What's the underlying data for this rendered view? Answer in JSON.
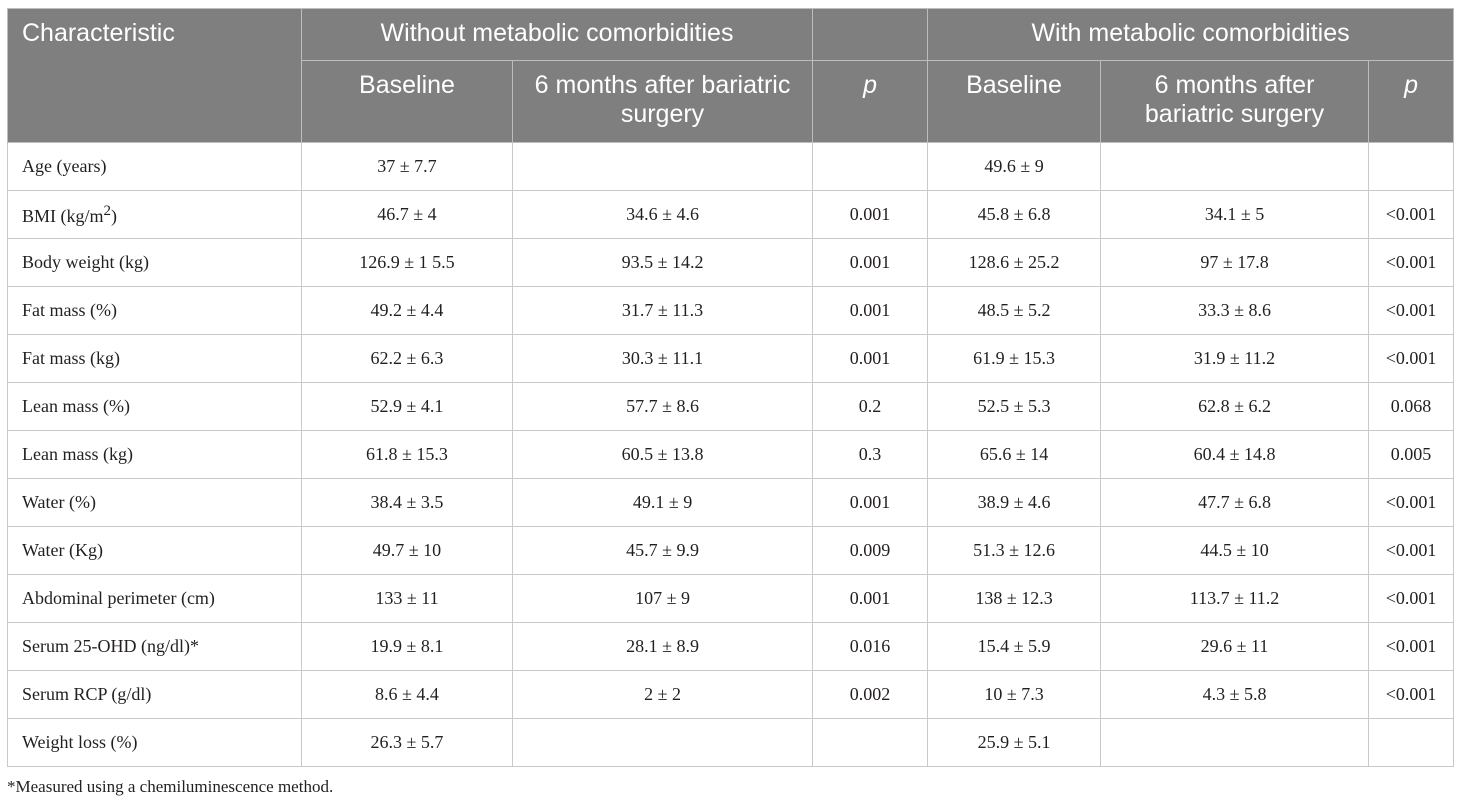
{
  "header": {
    "characteristic": "Characteristic",
    "group_without": "Without metabolic comorbidities",
    "group_with": "With metabolic comorbidities",
    "baseline": "Baseline",
    "after": "6 months after bariatric surgery",
    "p": "p"
  },
  "rows": [
    {
      "label": "Age (years)",
      "wo_base": "37 ± 7.7",
      "wo_after": "",
      "wo_p": "",
      "w_base": "49.6 ± 9",
      "w_after": "",
      "w_p": ""
    },
    {
      "label_pre": "BMI (kg/m",
      "label_sup": "2",
      "label_post": ")",
      "wo_base": "46.7 ± 4",
      "wo_after": "34.6 ± 4.6",
      "wo_p": "0.001",
      "w_base": "45.8 ± 6.8",
      "w_after": "34.1 ± 5",
      "w_p": "<0.001"
    },
    {
      "label": "Body weight (kg)",
      "wo_base": "126.9 ± 1 5.5",
      "wo_after": "93.5 ± 14.2",
      "wo_p": "0.001",
      "w_base": "128.6 ± 25.2",
      "w_after": "97 ± 17.8",
      "w_p": "<0.001"
    },
    {
      "label": "Fat mass (%)",
      "wo_base": "49.2 ± 4.4",
      "wo_after": "31.7 ± 11.3",
      "wo_p": "0.001",
      "w_base": "48.5 ± 5.2",
      "w_after": "33.3 ± 8.6",
      "w_p": "<0.001"
    },
    {
      "label": "Fat mass (kg)",
      "wo_base": "62.2 ± 6.3",
      "wo_after": "30.3 ± 11.1",
      "wo_p": "0.001",
      "w_base": "61.9 ± 15.3",
      "w_after": "31.9 ± 11.2",
      "w_p": "<0.001"
    },
    {
      "label": "Lean mass (%)",
      "wo_base": "52.9 ± 4.1",
      "wo_after": "57.7 ± 8.6",
      "wo_p": "0.2",
      "w_base": "52.5 ± 5.3",
      "w_after": "62.8 ± 6.2",
      "w_p": "0.068"
    },
    {
      "label": "Lean mass (kg)",
      "wo_base": "61.8 ± 15.3",
      "wo_after": "60.5 ± 13.8",
      "wo_p": "0.3",
      "w_base": "65.6 ± 14",
      "w_after": "60.4 ± 14.8",
      "w_p": "0.005"
    },
    {
      "label": "Water (%)",
      "wo_base": "38.4 ± 3.5",
      "wo_after": "49.1 ± 9",
      "wo_p": "0.001",
      "w_base": "38.9 ± 4.6",
      "w_after": "47.7 ± 6.8",
      "w_p": "<0.001"
    },
    {
      "label": "Water (Kg)",
      "wo_base": "49.7 ± 10",
      "wo_after": "45.7 ± 9.9",
      "wo_p": "0.009",
      "w_base": "51.3 ± 12.6",
      "w_after": "44.5 ± 10",
      "w_p": "<0.001"
    },
    {
      "label": "Abdominal perimeter (cm)",
      "wo_base": "133 ± 11",
      "wo_after": "107 ± 9",
      "wo_p": "0.001",
      "w_base": "138 ± 12.3",
      "w_after": "113.7 ± 11.2",
      "w_p": "<0.001"
    },
    {
      "label": "Serum 25-OHD (ng/dl)*",
      "wo_base": "19.9 ± 8.1",
      "wo_after": "28.1 ± 8.9",
      "wo_p": "0.016",
      "w_base": "15.4 ± 5.9",
      "w_after": "29.6 ± 11",
      "w_p": "<0.001"
    },
    {
      "label": "Serum RCP (g/dl)",
      "wo_base": "8.6 ± 4.4",
      "wo_after": "2 ± 2",
      "wo_p": "0.002",
      "w_base": "10 ± 7.3",
      "w_after": "4.3 ± 5.8",
      "w_p": "<0.001"
    },
    {
      "label": "Weight loss (%)",
      "wo_base": "26.3 ± 5.7",
      "wo_after": "",
      "wo_p": "",
      "w_base": "25.9 ± 5.1",
      "w_after": "",
      "w_p": ""
    }
  ],
  "footnote": "*Measured using a chemiluminescence method."
}
